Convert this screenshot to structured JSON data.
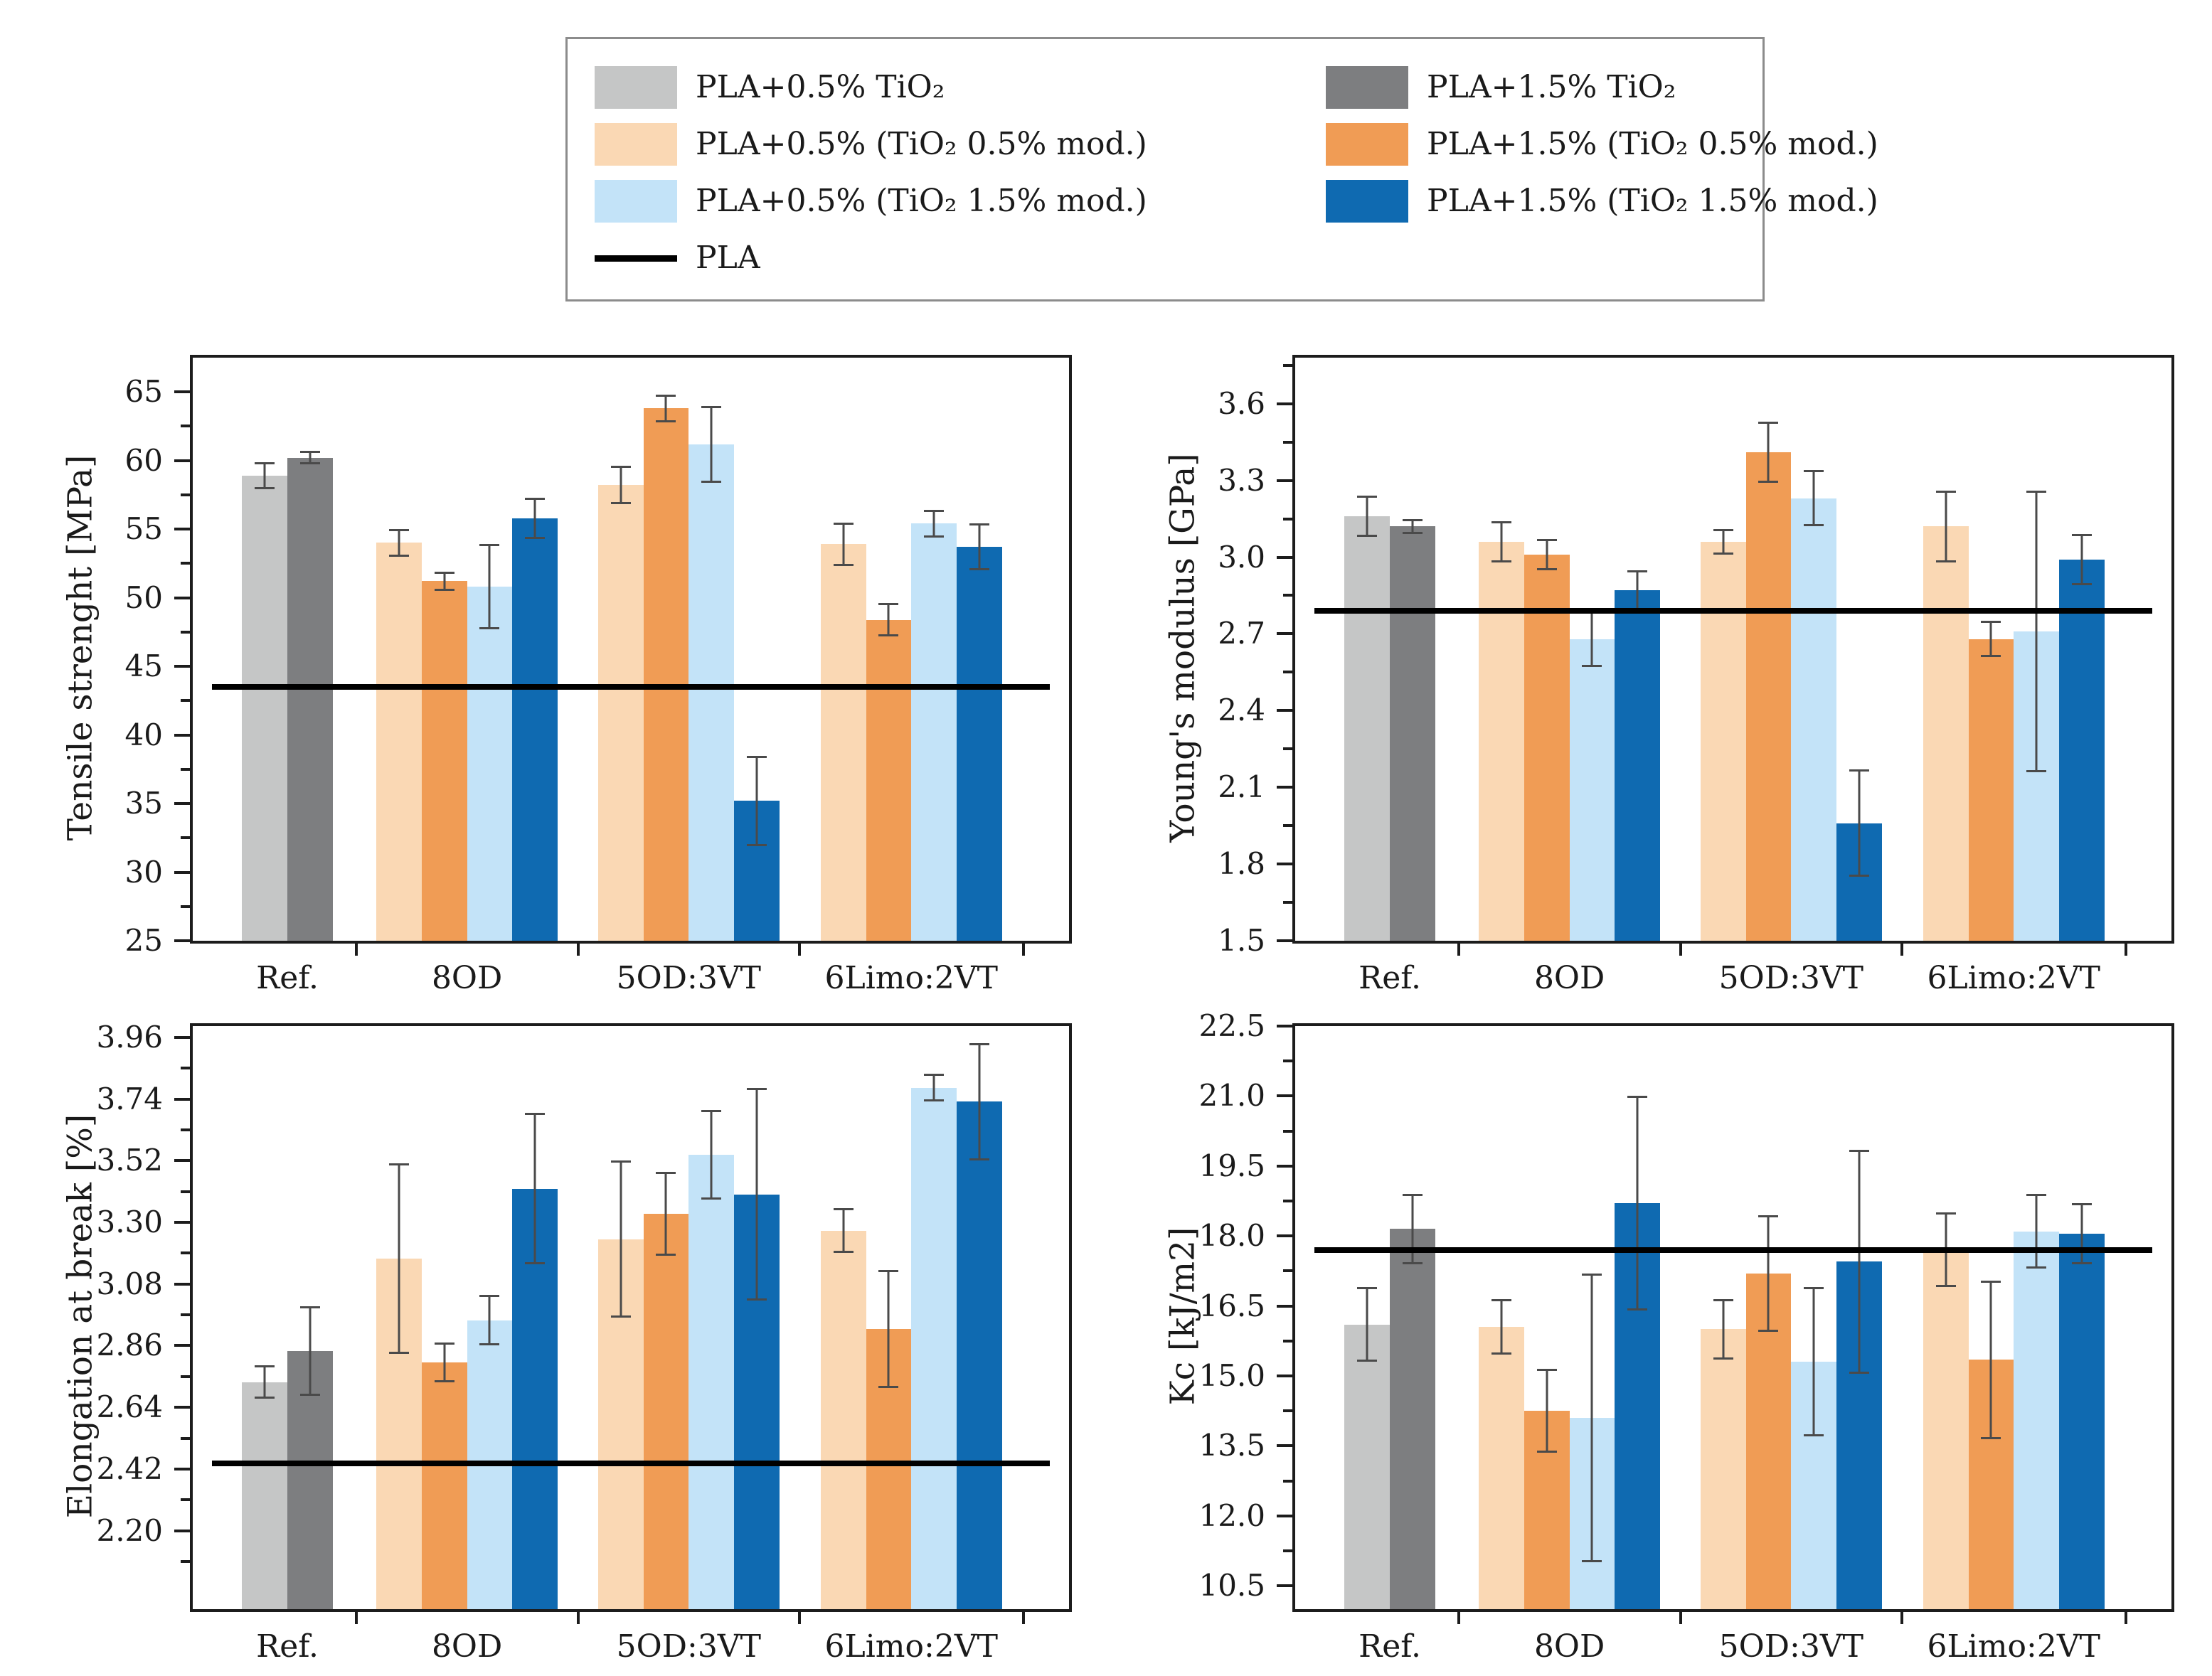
{
  "colors": {
    "gray_light": "#c5c6c6",
    "gray_dark": "#7d7e80",
    "orange_light": "#fad8b4",
    "orange_dark": "#f09c55",
    "blue_light": "#c3e3f8",
    "blue_dark": "#0f6ab1",
    "black": "#000000",
    "error_bar": "#4a4a4a",
    "axis": "#1c1c1c"
  },
  "legend": {
    "left": [
      {
        "label": "PLA+0.5% TiO₂",
        "marker": "box",
        "color": "gray_light"
      },
      {
        "label": "PLA+0.5% (TiO₂ 0.5% mod.)",
        "marker": "box",
        "color": "orange_light"
      },
      {
        "label": "PLA+0.5% (TiO₂ 1.5% mod.)",
        "marker": "box",
        "color": "blue_light"
      },
      {
        "label": "PLA",
        "marker": "line",
        "color": "black"
      }
    ],
    "right": [
      {
        "label": "PLA+1.5% TiO₂",
        "marker": "box",
        "color": "gray_dark"
      },
      {
        "label": "PLA+1.5% (TiO₂ 0.5% mod.)",
        "marker": "box",
        "color": "orange_dark"
      },
      {
        "label": "PLA+1.5% (TiO₂ 1.5% mod.)",
        "marker": "box",
        "color": "blue_dark"
      }
    ]
  },
  "chart_data": [
    {
      "id": "tensile-strength",
      "type": "bar",
      "title": "",
      "xlabel": "",
      "ylabel": "Tensile strenght [MPa]",
      "ylim": [
        25,
        67.5
      ],
      "ytick_values": [
        25,
        30,
        35,
        40,
        45,
        50,
        55,
        60,
        65
      ],
      "ytick_labels": [
        "25",
        "30",
        "35",
        "40",
        "45",
        "50",
        "55",
        "60",
        "65"
      ],
      "categories": [
        "Ref.",
        "8OD",
        "5OD:3VT",
        "6Limo:2VT"
      ],
      "ref_line": {
        "series": "PLA",
        "value": 43.5
      },
      "groups": [
        {
          "category": "Ref.",
          "bars": [
            {
              "series": "PLA+0.5% TiO₂",
              "color": "gray_light",
              "value": 58.9,
              "error": 1.0
            },
            {
              "series": "PLA+1.5% TiO₂",
              "color": "gray_dark",
              "value": 60.2,
              "error": 0.5
            }
          ]
        },
        {
          "category": "8OD",
          "bars": [
            {
              "series": "PLA+0.5% (TiO₂ 0.5% mod.)",
              "color": "orange_light",
              "value": 54.0,
              "error": 1.0
            },
            {
              "series": "PLA+1.5% (TiO₂ 0.5% mod.)",
              "color": "orange_dark",
              "value": 51.2,
              "error": 0.7
            },
            {
              "series": "PLA+0.5% (TiO₂ 1.5% mod.)",
              "color": "blue_light",
              "value": 50.8,
              "error": 3.1
            },
            {
              "series": "PLA+1.5% (TiO₂ 1.5% mod.)",
              "color": "blue_dark",
              "value": 55.8,
              "error": 1.5
            }
          ]
        },
        {
          "category": "5OD:3VT",
          "bars": [
            {
              "series": "PLA+0.5% (TiO₂ 0.5% mod.)",
              "color": "orange_light",
              "value": 58.2,
              "error": 1.4
            },
            {
              "series": "PLA+1.5% (TiO₂ 0.5% mod.)",
              "color": "orange_dark",
              "value": 63.8,
              "error": 1.0
            },
            {
              "series": "PLA+0.5% (TiO₂ 1.5% mod.)",
              "color": "blue_light",
              "value": 61.2,
              "error": 2.8
            },
            {
              "series": "PLA+1.5% (TiO₂ 1.5% mod.)",
              "color": "blue_dark",
              "value": 35.2,
              "error": 3.3
            }
          ]
        },
        {
          "category": "6Limo:2VT",
          "bars": [
            {
              "series": "PLA+0.5% (TiO₂ 0.5% mod.)",
              "color": "orange_light",
              "value": 53.9,
              "error": 1.6
            },
            {
              "series": "PLA+1.5% (TiO₂ 0.5% mod.)",
              "color": "orange_dark",
              "value": 48.4,
              "error": 1.2
            },
            {
              "series": "PLA+0.5% (TiO₂ 1.5% mod.)",
              "color": "blue_light",
              "value": 55.4,
              "error": 1.0
            },
            {
              "series": "PLA+1.5% (TiO₂ 1.5% mod.)",
              "color": "blue_dark",
              "value": 53.7,
              "error": 1.7
            }
          ]
        }
      ]
    },
    {
      "id": "youngs-modulus",
      "type": "bar",
      "title": "",
      "xlabel": "",
      "ylabel": "Young's modulus [GPa]",
      "ylim": [
        1.5,
        3.78
      ],
      "ytick_values": [
        1.5,
        1.8,
        2.1,
        2.4,
        2.7,
        3.0,
        3.3,
        3.6
      ],
      "ytick_labels": [
        "1.5",
        "1.8",
        "2.1",
        "2.4",
        "2.7",
        "3.0",
        "3.3",
        "3.6"
      ],
      "categories": [
        "Ref.",
        "8OD",
        "5OD:3VT",
        "6Limo:2VT"
      ],
      "ref_line": {
        "series": "PLA",
        "value": 2.79
      },
      "groups": [
        {
          "category": "Ref.",
          "bars": [
            {
              "series": "PLA+0.5% TiO₂",
              "color": "gray_light",
              "value": 3.16,
              "error": 0.08
            },
            {
              "series": "PLA+1.5% TiO₂",
              "color": "gray_dark",
              "value": 3.12,
              "error": 0.03
            }
          ]
        },
        {
          "category": "8OD",
          "bars": [
            {
              "series": "PLA+0.5% (TiO₂ 0.5% mod.)",
              "color": "orange_light",
              "value": 3.06,
              "error": 0.08
            },
            {
              "series": "PLA+1.5% (TiO₂ 0.5% mod.)",
              "color": "orange_dark",
              "value": 3.01,
              "error": 0.06
            },
            {
              "series": "PLA+0.5% (TiO₂ 1.5% mod.)",
              "color": "blue_light",
              "value": 2.68,
              "error": 0.11
            },
            {
              "series": "PLA+1.5% (TiO₂ 1.5% mod.)",
              "color": "blue_dark",
              "value": 2.87,
              "error": 0.08
            }
          ]
        },
        {
          "category": "5OD:3VT",
          "bars": [
            {
              "series": "PLA+0.5% (TiO₂ 0.5% mod.)",
              "color": "orange_light",
              "value": 3.06,
              "error": 0.05
            },
            {
              "series": "PLA+1.5% (TiO₂ 0.5% mod.)",
              "color": "orange_dark",
              "value": 3.41,
              "error": 0.12
            },
            {
              "series": "PLA+0.5% (TiO₂ 1.5% mod.)",
              "color": "blue_light",
              "value": 3.23,
              "error": 0.11
            },
            {
              "series": "PLA+1.5% (TiO₂ 1.5% mod.)",
              "color": "blue_dark",
              "value": 1.96,
              "error": 0.21
            }
          ]
        },
        {
          "category": "6Limo:2VT",
          "bars": [
            {
              "series": "PLA+0.5% (TiO₂ 0.5% mod.)",
              "color": "orange_light",
              "value": 3.12,
              "error": 0.14
            },
            {
              "series": "PLA+1.5% (TiO₂ 0.5% mod.)",
              "color": "orange_dark",
              "value": 2.68,
              "error": 0.07
            },
            {
              "series": "PLA+0.5% (TiO₂ 1.5% mod.)",
              "color": "blue_light",
              "value": 2.71,
              "error": 0.55
            },
            {
              "series": "PLA+1.5% (TiO₂ 1.5% mod.)",
              "color": "blue_dark",
              "value": 2.99,
              "error": 0.1
            }
          ]
        }
      ]
    },
    {
      "id": "elongation-at-break",
      "type": "bar",
      "title": "",
      "xlabel": "",
      "ylabel": "Elongation at break [%]",
      "ylim": [
        1.92,
        4.0
      ],
      "ytick_values": [
        2.2,
        2.42,
        2.64,
        2.86,
        3.08,
        3.3,
        3.52,
        3.74,
        3.96
      ],
      "ytick_labels": [
        "2.20",
        "2.42",
        "2.64",
        "2.86",
        "3.08",
        "3.30",
        "3.52",
        "3.74",
        "3.96"
      ],
      "categories": [
        "Ref.",
        "8OD",
        "5OD:3VT",
        "6Limo:2VT"
      ],
      "ref_line": {
        "series": "PLA",
        "value": 2.44
      },
      "groups": [
        {
          "category": "Ref.",
          "bars": [
            {
              "series": "PLA+0.5% TiO₂",
              "color": "gray_light",
              "value": 2.73,
              "error": 0.06
            },
            {
              "series": "PLA+1.5% TiO₂",
              "color": "gray_dark",
              "value": 2.84,
              "error": 0.16
            }
          ]
        },
        {
          "category": "8OD",
          "bars": [
            {
              "series": "PLA+0.5% (TiO₂ 0.5% mod.)",
              "color": "orange_light",
              "value": 3.17,
              "error": 0.34
            },
            {
              "series": "PLA+1.5% (TiO₂ 0.5% mod.)",
              "color": "orange_dark",
              "value": 2.8,
              "error": 0.07
            },
            {
              "series": "PLA+0.5% (TiO₂ 1.5% mod.)",
              "color": "blue_light",
              "value": 2.95,
              "error": 0.09
            },
            {
              "series": "PLA+1.5% (TiO₂ 1.5% mod.)",
              "color": "blue_dark",
              "value": 3.42,
              "error": 0.27
            }
          ]
        },
        {
          "category": "5OD:3VT",
          "bars": [
            {
              "series": "PLA+0.5% (TiO₂ 0.5% mod.)",
              "color": "orange_light",
              "value": 3.24,
              "error": 0.28
            },
            {
              "series": "PLA+1.5% (TiO₂ 0.5% mod.)",
              "color": "orange_dark",
              "value": 3.33,
              "error": 0.15
            },
            {
              "series": "PLA+0.5% (TiO₂ 1.5% mod.)",
              "color": "blue_light",
              "value": 3.54,
              "error": 0.16
            },
            {
              "series": "PLA+1.5% (TiO₂ 1.5% mod.)",
              "color": "blue_dark",
              "value": 3.4,
              "error": 0.38
            }
          ]
        },
        {
          "category": "6Limo:2VT",
          "bars": [
            {
              "series": "PLA+0.5% (TiO₂ 0.5% mod.)",
              "color": "orange_light",
              "value": 3.27,
              "error": 0.08
            },
            {
              "series": "PLA+1.5% (TiO₂ 0.5% mod.)",
              "color": "orange_dark",
              "value": 2.92,
              "error": 0.21
            },
            {
              "series": "PLA+0.5% (TiO₂ 1.5% mod.)",
              "color": "blue_light",
              "value": 3.78,
              "error": 0.05
            },
            {
              "series": "PLA+1.5% (TiO₂ 1.5% mod.)",
              "color": "blue_dark",
              "value": 3.73,
              "error": 0.21
            }
          ]
        }
      ]
    },
    {
      "id": "impact-strength-kc",
      "type": "bar",
      "title": "",
      "xlabel": "",
      "ylabel": "Kc [kJ/m2]",
      "ylim": [
        10.0,
        22.5
      ],
      "ytick_values": [
        10.5,
        12.0,
        13.5,
        15.0,
        16.5,
        18.0,
        19.5,
        21.0,
        22.5
      ],
      "ytick_labels": [
        "10.5",
        "12.0",
        "13.5",
        "15.0",
        "16.5",
        "18.0",
        "19.5",
        "21.0",
        "22.5"
      ],
      "categories": [
        "Ref.",
        "8OD",
        "5OD:3VT",
        "6Limo:2VT"
      ],
      "ref_line": {
        "series": "PLA",
        "value": 17.7
      },
      "groups": [
        {
          "category": "Ref.",
          "bars": [
            {
              "series": "PLA+0.5% TiO₂",
              "color": "gray_light",
              "value": 16.1,
              "error": 0.8
            },
            {
              "series": "PLA+1.5% TiO₂",
              "color": "gray_dark",
              "value": 18.15,
              "error": 0.75
            }
          ]
        },
        {
          "category": "8OD",
          "bars": [
            {
              "series": "PLA+0.5% (TiO₂ 0.5% mod.)",
              "color": "orange_light",
              "value": 16.05,
              "error": 0.6
            },
            {
              "series": "PLA+1.5% (TiO₂ 0.5% mod.)",
              "color": "orange_dark",
              "value": 14.25,
              "error": 0.9
            },
            {
              "series": "PLA+0.5% (TiO₂ 1.5% mod.)",
              "color": "blue_light",
              "value": 14.1,
              "error": 3.1
            },
            {
              "series": "PLA+1.5% (TiO₂ 1.5% mod.)",
              "color": "blue_dark",
              "value": 18.7,
              "error": 2.3
            }
          ]
        },
        {
          "category": "5OD:3VT",
          "bars": [
            {
              "series": "PLA+0.5% (TiO₂ 0.5% mod.)",
              "color": "orange_light",
              "value": 16.0,
              "error": 0.65
            },
            {
              "series": "PLA+1.5% (TiO₂ 0.5% mod.)",
              "color": "orange_dark",
              "value": 17.2,
              "error": 1.25
            },
            {
              "series": "PLA+0.5% (TiO₂ 1.5% mod.)",
              "color": "blue_light",
              "value": 15.3,
              "error": 1.6
            },
            {
              "series": "PLA+1.5% (TiO₂ 1.5% mod.)",
              "color": "blue_dark",
              "value": 17.45,
              "error": 2.4
            }
          ]
        },
        {
          "category": "6Limo:2VT",
          "bars": [
            {
              "series": "PLA+0.5% (TiO₂ 0.5% mod.)",
              "color": "orange_light",
              "value": 17.7,
              "error": 0.8
            },
            {
              "series": "PLA+1.5% (TiO₂ 0.5% mod.)",
              "color": "orange_dark",
              "value": 15.35,
              "error": 1.7
            },
            {
              "series": "PLA+0.5% (TiO₂ 1.5% mod.)",
              "color": "blue_light",
              "value": 18.1,
              "error": 0.8
            },
            {
              "series": "PLA+1.5% (TiO₂ 1.5% mod.)",
              "color": "blue_dark",
              "value": 18.05,
              "error": 0.65
            }
          ]
        }
      ]
    }
  ]
}
